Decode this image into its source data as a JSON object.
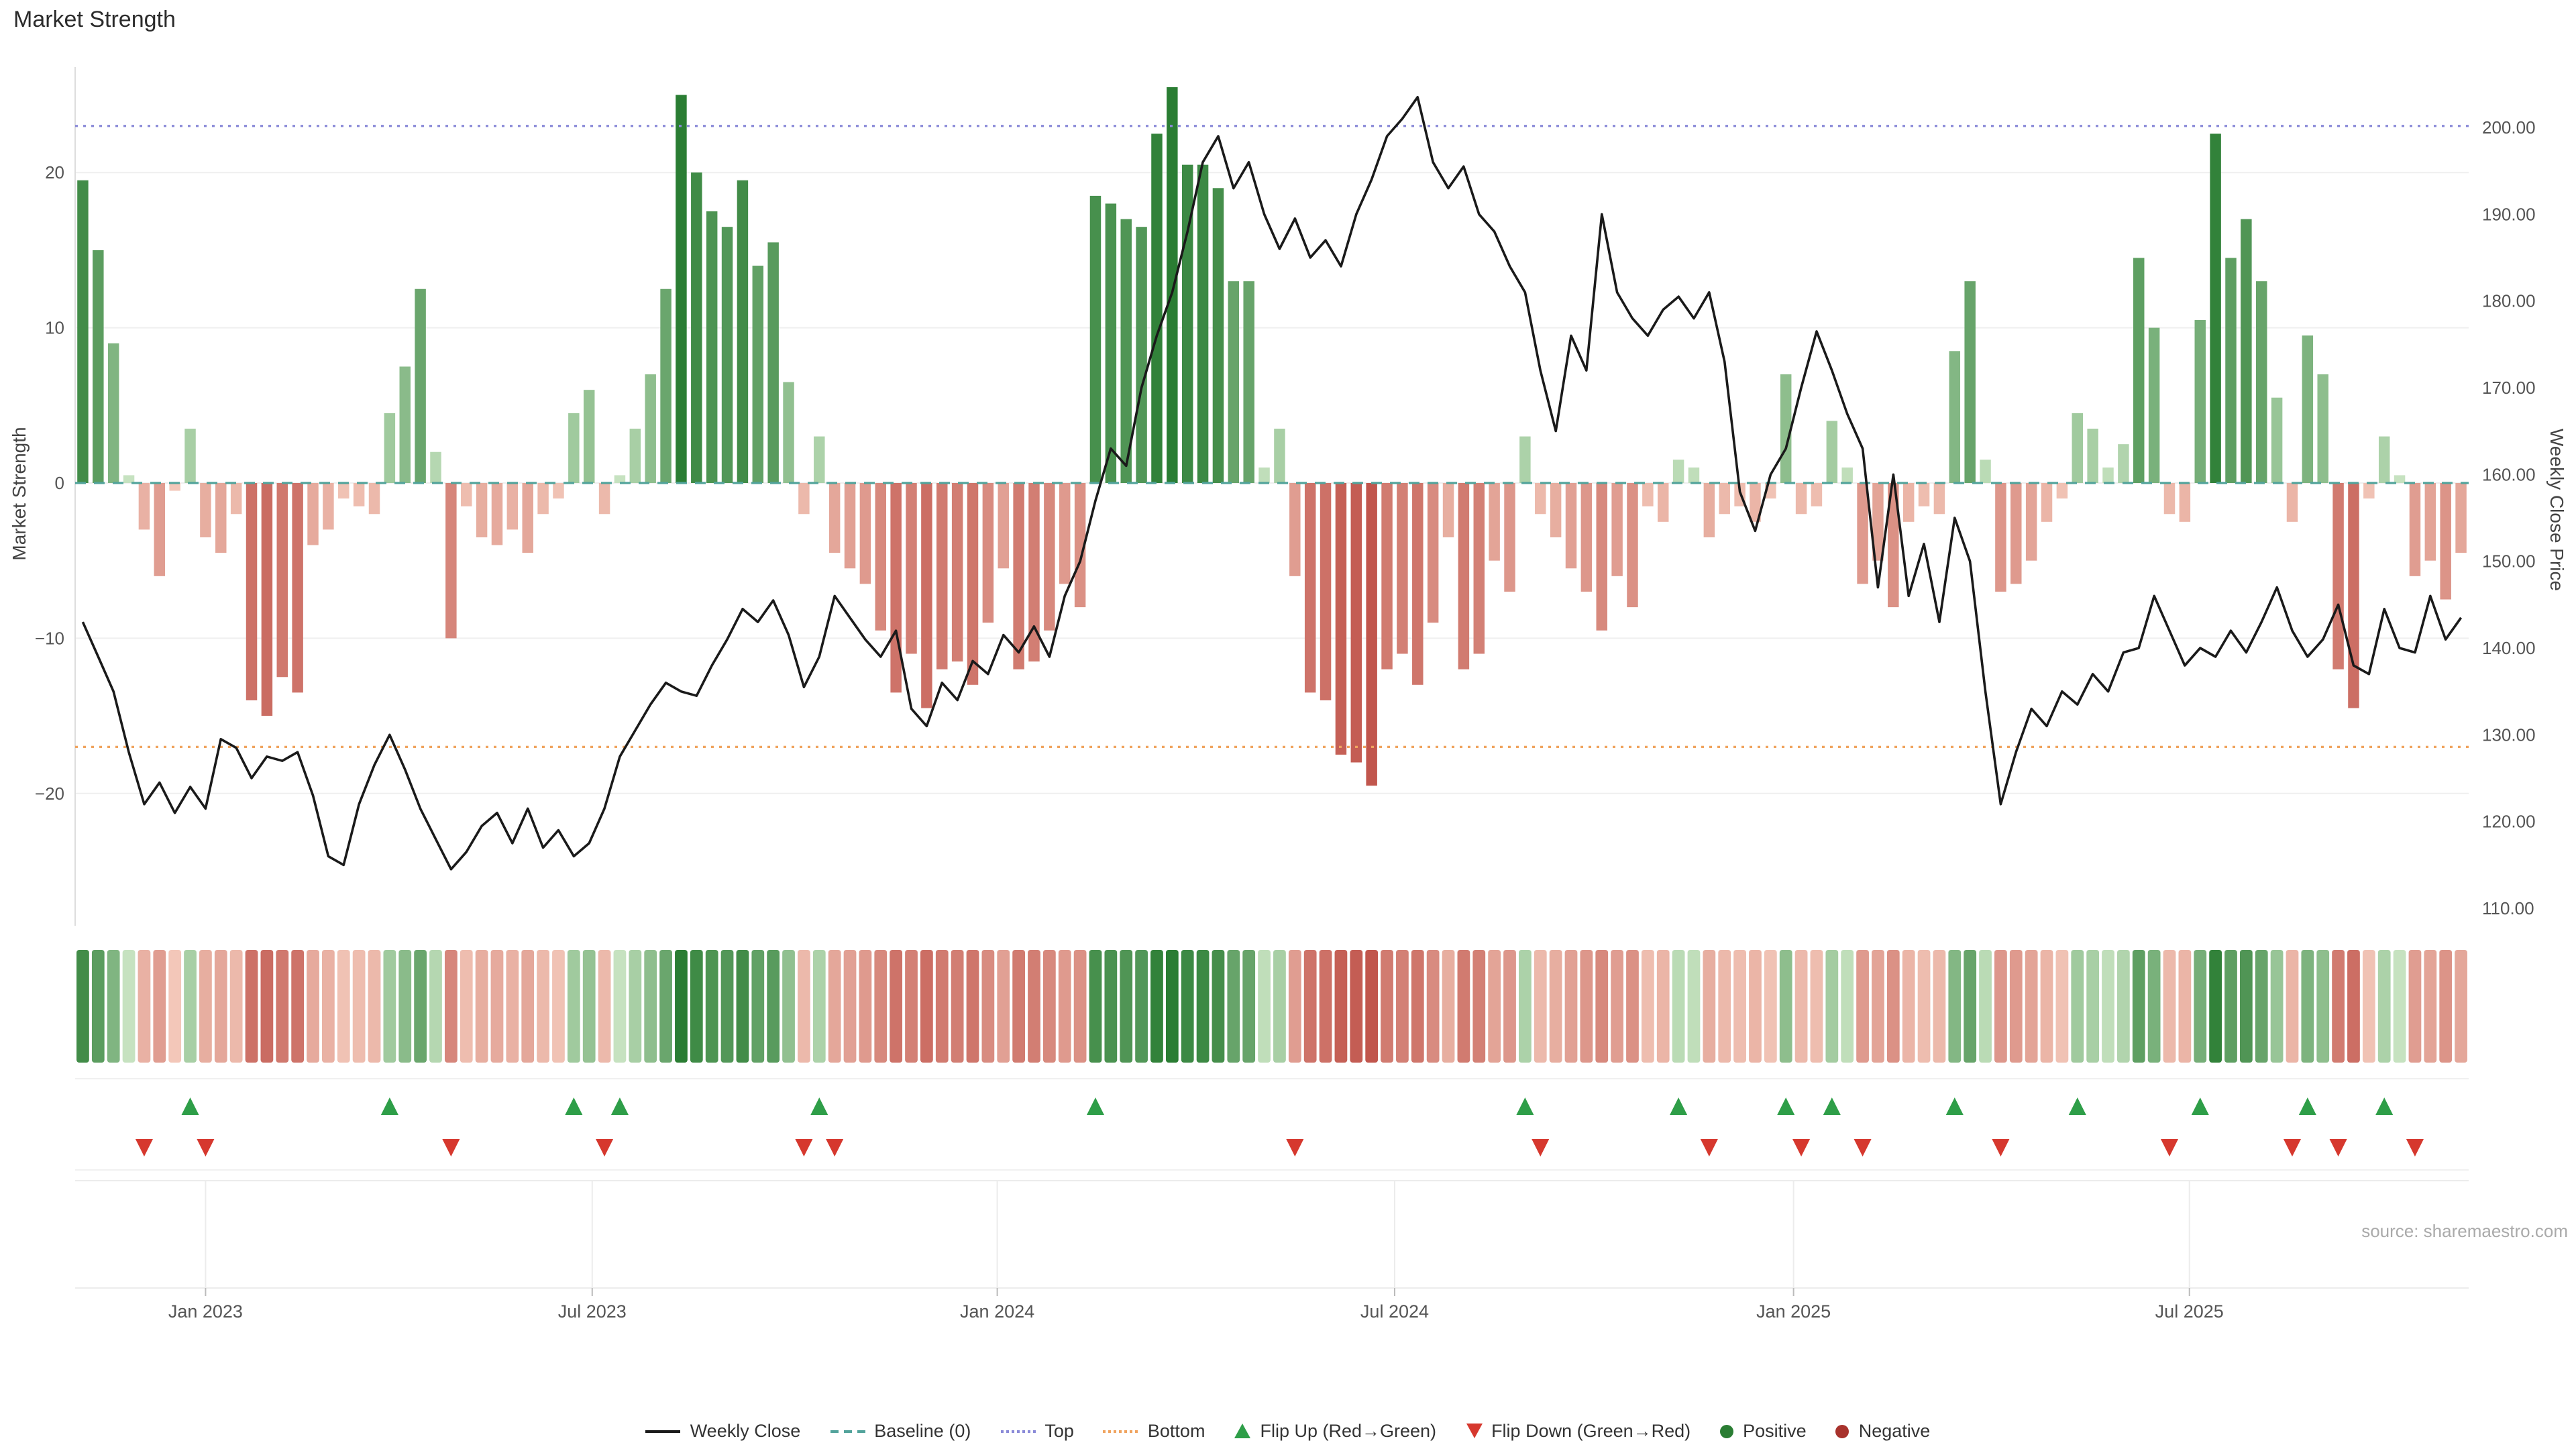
{
  "page": {
    "title": "Market Strength",
    "source": "source: sharemaestro.com"
  },
  "chart_data": {
    "type": "bar+line+heatmap",
    "title": "Market Strength",
    "x_axis": {
      "unit": "weeks",
      "count": 156,
      "ticks": [
        {
          "label": "Jan 2023",
          "index": 8.5
        },
        {
          "label": "Jul 2023",
          "index": 33.7
        },
        {
          "label": "Jan 2024",
          "index": 60.1
        },
        {
          "label": "Jul 2024",
          "index": 86.0
        },
        {
          "label": "Jan 2025",
          "index": 112.0
        },
        {
          "label": "Jul 2025",
          "index": 137.8
        }
      ]
    },
    "left_axis": {
      "title": "Market Strength",
      "tick_labels": [
        "20",
        "10",
        "0",
        "−10",
        "−20"
      ],
      "tick_values": [
        20,
        10,
        0,
        -10,
        -20
      ],
      "range": [
        -26,
        26
      ]
    },
    "right_axis": {
      "title": "Weekly Close Price",
      "tick_labels": [
        "200.00",
        "190.00",
        "180.00",
        "170.00",
        "160.00",
        "150.00",
        "140.00",
        "130.00",
        "120.00",
        "110.00"
      ],
      "tick_values": [
        200,
        190,
        180,
        170,
        160,
        150,
        140,
        130,
        120,
        110
      ],
      "range": [
        110,
        205
      ]
    },
    "reference_lines": {
      "baseline": 0,
      "top": 23,
      "bottom": -17
    },
    "series": [
      {
        "name": "Market Strength",
        "type": "bar",
        "axis": "left",
        "values": [
          19.5,
          15,
          9,
          0.5,
          -3,
          -6,
          -0.5,
          3.5,
          -3.5,
          -4.5,
          -2,
          -14,
          -15,
          -12.5,
          -13.5,
          -4,
          -3,
          -1,
          -1.5,
          -2,
          4.5,
          7.5,
          12.5,
          2,
          -10,
          -1.5,
          -3.5,
          -4,
          -3,
          -4.5,
          -2,
          -1,
          4.5,
          6,
          -2,
          0.5,
          3.5,
          7,
          12.5,
          25,
          20,
          17.5,
          16.5,
          19.5,
          14,
          15.5,
          6.5,
          -2,
          3,
          -4.5,
          -5.5,
          -6.5,
          -9.5,
          -13.5,
          -11,
          -14.5,
          -12,
          -11.5,
          -13,
          -9,
          -5.5,
          -12,
          -11.5,
          -9.5,
          -6.5,
          -8,
          18.5,
          18,
          17,
          16.5,
          22.5,
          25.5,
          20.5,
          20.5,
          19,
          13,
          13,
          1,
          3.5,
          -6,
          -13.5,
          -14,
          -17.5,
          -18,
          -19.5,
          -12,
          -11,
          -13,
          -9,
          -3.5,
          -12,
          -11,
          -5,
          -7,
          3,
          -2,
          -3.5,
          -5.5,
          -7,
          -9.5,
          -6,
          -8,
          -1.5,
          -2.5,
          1.5,
          1,
          -3.5,
          -2,
          -1.5,
          -2.5,
          -1,
          7,
          -2,
          -1.5,
          4,
          1,
          -6.5,
          -5,
          -8,
          -2.5,
          -1.5,
          -2,
          8.5,
          13,
          1.5,
          -7,
          -6.5,
          -5,
          -2.5,
          -1,
          4.5,
          3.5,
          1,
          2.5,
          14.5,
          10,
          -2,
          -2.5,
          10.5,
          22.5,
          14.5,
          17,
          13,
          5.5,
          -2.5,
          9.5,
          7,
          -12,
          -14.5,
          -1,
          3,
          0.5,
          -6,
          -5,
          -7.5,
          -4.5
        ]
      },
      {
        "name": "Weekly Close",
        "type": "line",
        "axis": "right",
        "values": [
          143,
          139,
          135,
          128,
          122,
          124.5,
          121,
          124,
          121.5,
          129.5,
          128.5,
          125,
          127.5,
          127,
          128,
          123,
          116,
          115,
          122,
          126.5,
          130,
          126,
          121.5,
          118,
          114.5,
          116.5,
          119.5,
          121,
          117.5,
          121.5,
          117,
          119,
          116,
          117.5,
          121.5,
          127.5,
          130.5,
          133.5,
          136,
          135,
          134.5,
          138,
          141,
          144.5,
          143,
          145.5,
          141.5,
          135.5,
          139,
          146,
          143.5,
          141,
          139,
          142,
          133,
          131,
          136,
          134,
          138.5,
          137,
          141.5,
          139.5,
          142.5,
          139,
          146,
          150,
          157,
          163,
          161,
          170,
          176,
          181,
          188,
          196,
          199,
          193,
          196,
          190,
          186,
          189.5,
          185,
          187,
          184,
          190,
          194,
          199,
          201,
          203.5,
          196,
          193,
          195.5,
          190,
          188,
          184,
          181,
          172,
          165,
          176,
          172,
          190,
          181,
          178,
          176,
          179,
          180.5,
          178,
          181,
          173,
          158,
          153.5,
          160,
          163,
          170,
          176.5,
          172,
          167,
          163,
          147,
          160,
          146,
          152,
          143,
          155,
          150,
          135,
          122,
          128,
          133,
          131,
          135,
          133.5,
          137,
          135,
          139.5,
          140,
          146,
          142,
          138,
          140,
          139,
          142,
          139.5,
          143,
          147,
          142,
          139,
          141,
          145,
          138,
          137,
          144.5,
          140,
          139.5,
          146,
          141,
          143.5
        ]
      }
    ],
    "flip_up_indices": [
      7,
      20,
      32,
      35,
      48,
      66,
      94,
      104,
      111,
      114,
      122,
      130,
      138,
      145,
      150
    ],
    "flip_down_indices": [
      4,
      8,
      24,
      34,
      47,
      49,
      79,
      95,
      106,
      112,
      116,
      125,
      136,
      144,
      147,
      152
    ],
    "heatmap": {
      "note": "weekly strip colored by Market Strength value, same 156 weeks"
    },
    "colors": {
      "positive_dark": "#2a7d33",
      "positive_light": "#cfe8c8",
      "negative_dark": "#b8423a",
      "negative_light": "#f6cfc0",
      "line": "#1a1a1a",
      "baseline": "#52a39b",
      "top": "#8a8ad8",
      "bottom": "#f0a45f",
      "flip_up": "#2e9e48",
      "flip_down": "#d6382e"
    },
    "legend": [
      {
        "label": "Weekly Close",
        "swatch": "line-solid",
        "color": "#1a1a1a"
      },
      {
        "label": "Baseline (0)",
        "swatch": "line-dashed",
        "color": "#52a39b"
      },
      {
        "label": "Top",
        "swatch": "line-dotted",
        "color": "#8a8ad8"
      },
      {
        "label": "Bottom",
        "swatch": "line-dotted",
        "color": "#f0a45f"
      },
      {
        "label": "Flip Up (Red→Green)",
        "swatch": "triangle-up",
        "color": "#2e9e48"
      },
      {
        "label": "Flip Down (Green→Red)",
        "swatch": "triangle-down",
        "color": "#d6382e"
      },
      {
        "label": "Positive",
        "swatch": "dot",
        "color": "#2a7d33"
      },
      {
        "label": "Negative",
        "swatch": "dot",
        "color": "#a8322c"
      }
    ]
  }
}
